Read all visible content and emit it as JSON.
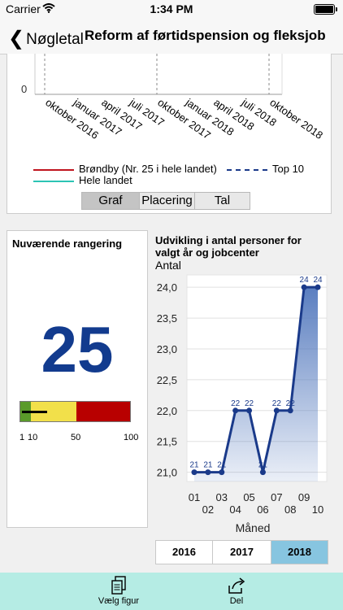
{
  "status": {
    "carrier": "Carrier",
    "time": "1:34 PM"
  },
  "nav": {
    "back_label": "Nøgletal",
    "title": "Reform af førtidspension og fleksjob"
  },
  "top_chart": {
    "y_zero_label": "0",
    "x_tick_labels": [
      "oktober 2016",
      "januar 2017",
      "april 2017",
      "juli 2017",
      "oktober 2017",
      "januar 2018",
      "april 2018",
      "juli 2018",
      "oktober 2018"
    ],
    "legend": [
      {
        "label": "Brøndby (Nr. 25 i hele landet)",
        "color": "#c0141e",
        "style": "solid"
      },
      {
        "label": "Top 10",
        "color": "#1a3a8a",
        "style": "dashed"
      },
      {
        "label": "Hele landet",
        "color": "#2cc4b4",
        "style": "solid"
      }
    ],
    "view_tabs": [
      "Graf",
      "Placering",
      "Tal"
    ],
    "active_view": "Graf"
  },
  "ranking": {
    "title": "Nuværende rangering",
    "rank": "25",
    "scale_labels": [
      "1",
      "10",
      "50",
      "100"
    ],
    "scale_value": 25,
    "zones": [
      {
        "from": 1,
        "to": 10,
        "color": "#5a9a2a"
      },
      {
        "from": 10,
        "to": 50,
        "color": "#f2e04a"
      },
      {
        "from": 50,
        "to": 100,
        "color": "#b80000"
      }
    ]
  },
  "chart_data": {
    "type": "area",
    "title": "Udvikling i antal personer for valgt år og jobcenter",
    "ylabel": "Antal",
    "xlabel": "Måned",
    "ylim": [
      20.85,
      24.2
    ],
    "y_ticks": [
      "21,0",
      "21,5",
      "22,0",
      "22,5",
      "23,0",
      "23,5",
      "24,0"
    ],
    "categories": [
      "01",
      "02",
      "03",
      "04",
      "05",
      "06",
      "07",
      "08",
      "09",
      "10"
    ],
    "values": [
      21,
      21,
      21,
      22,
      22,
      21,
      22,
      22,
      24,
      24
    ],
    "data_labels": [
      "21",
      "21",
      "21",
      "22",
      "22",
      "21",
      "22",
      "22",
      "24",
      "24"
    ],
    "line_color": "#1a3a8a",
    "fill_color": "#5a7ec0"
  },
  "years": {
    "options": [
      "2016",
      "2017",
      "2018"
    ],
    "selected": "2018"
  },
  "tabbar": {
    "items": [
      {
        "label": "Vælg figur",
        "icon": "document-icon"
      },
      {
        "label": "Del",
        "icon": "share-icon"
      }
    ]
  }
}
